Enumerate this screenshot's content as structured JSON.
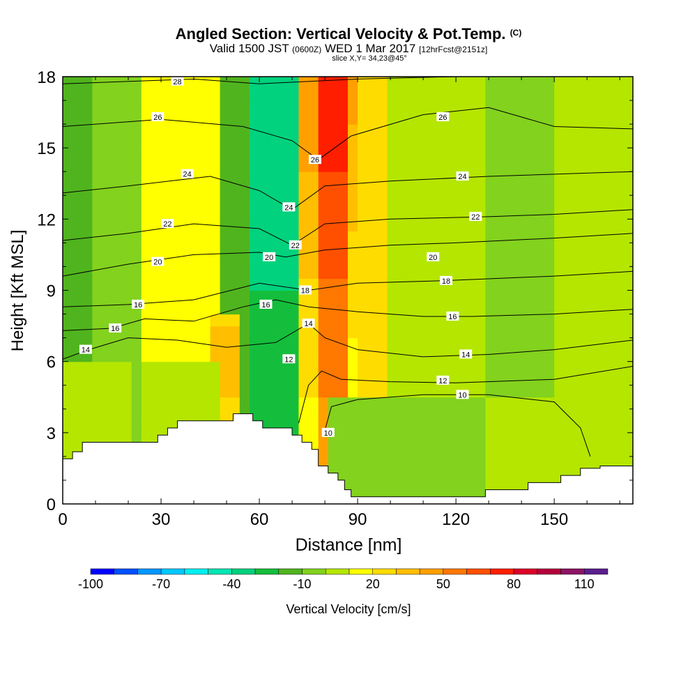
{
  "title": {
    "main": "Angled Section: Vertical Velocity & Pot.Temp.",
    "main_suffix": "(C)",
    "valid_prefix": "Valid 1500 JST",
    "valid_zulu": "(0600Z)",
    "valid_date": "WED 1 Mar 2017",
    "forecast": "[12hrFcst@2151z]",
    "slice": "slice X,Y= 34,23@45°"
  },
  "chart_data": {
    "type": "heatmap",
    "xlabel": "Distance [nm]",
    "ylabel": "Height [Kft MSL]",
    "xlim": [
      0,
      174
    ],
    "ylim": [
      0,
      18
    ],
    "x_ticks": [
      0,
      30,
      60,
      90,
      120,
      150
    ],
    "y_ticks": [
      0,
      3,
      6,
      9,
      12,
      15,
      18
    ],
    "colorbar": {
      "label": "Vertical Velocity [cm/s]",
      "tick_labels": [
        "-100",
        "-70",
        "-40",
        "-10",
        "20",
        "50",
        "80",
        "110"
      ],
      "tick_values": [
        -100,
        -70,
        -40,
        -10,
        20,
        50,
        80,
        110
      ],
      "range": [
        -100,
        120
      ],
      "step": 10,
      "colors": [
        "#0000ff",
        "#0050ff",
        "#0096ff",
        "#00c8ff",
        "#00f0f0",
        "#00e6b4",
        "#00d27d",
        "#14be3c",
        "#50b41e",
        "#82d21e",
        "#b4e600",
        "#ffff00",
        "#ffdc00",
        "#ffbe00",
        "#ffa000",
        "#ff7800",
        "#ff5000",
        "#ff1e00",
        "#dc0028",
        "#b4003c",
        "#8c1464",
        "#5a1e8c"
      ]
    },
    "contour_labels": [
      "10",
      "12",
      "14",
      "16",
      "18",
      "20",
      "22",
      "24",
      "26",
      "28"
    ],
    "theta_contours": [
      {
        "label": "10",
        "pts": [
          [
            80,
            3.1
          ],
          [
            82,
            4.1
          ],
          [
            90,
            4.4
          ],
          [
            110,
            4.6
          ],
          [
            130,
            4.6
          ],
          [
            150,
            4.3
          ],
          [
            158,
            3.2
          ],
          [
            161,
            2.0
          ]
        ]
      },
      {
        "label": "12",
        "pts": [
          [
            72,
            3.4
          ],
          [
            75,
            5.0
          ],
          [
            79,
            5.6
          ],
          [
            85,
            5.25
          ],
          [
            100,
            5.15
          ],
          [
            120,
            5.1
          ],
          [
            150,
            5.25
          ],
          [
            174,
            5.8
          ]
        ]
      },
      {
        "label": "14",
        "pts": [
          [
            0,
            6.1
          ],
          [
            8,
            6.5
          ],
          [
            20,
            7.0
          ],
          [
            35,
            6.9
          ],
          [
            50,
            6.6
          ],
          [
            65,
            6.8
          ],
          [
            75,
            7.6
          ],
          [
            80,
            7.0
          ],
          [
            90,
            6.5
          ],
          [
            110,
            6.2
          ],
          [
            130,
            6.3
          ],
          [
            150,
            6.5
          ],
          [
            174,
            6.9
          ]
        ]
      },
      {
        "label": "16",
        "pts": [
          [
            0,
            7.3
          ],
          [
            15,
            7.4
          ],
          [
            25,
            7.8
          ],
          [
            40,
            7.7
          ],
          [
            55,
            8.3
          ],
          [
            65,
            8.6
          ],
          [
            75,
            8.3
          ],
          [
            90,
            8.1
          ],
          [
            110,
            7.9
          ],
          [
            125,
            7.9
          ],
          [
            150,
            8.0
          ],
          [
            174,
            8.2
          ]
        ]
      },
      {
        "label": "18",
        "pts": [
          [
            0,
            8.3
          ],
          [
            20,
            8.4
          ],
          [
            40,
            8.6
          ],
          [
            60,
            9.3
          ],
          [
            75,
            9.0
          ],
          [
            90,
            9.3
          ],
          [
            115,
            9.4
          ],
          [
            150,
            9.6
          ],
          [
            174,
            9.8
          ]
        ]
      },
      {
        "label": "20",
        "pts": [
          [
            0,
            9.6
          ],
          [
            20,
            10.1
          ],
          [
            40,
            10.5
          ],
          [
            60,
            10.6
          ],
          [
            68,
            10.4
          ],
          [
            80,
            10.7
          ],
          [
            100,
            10.9
          ],
          [
            120,
            11.0
          ],
          [
            150,
            11.2
          ],
          [
            174,
            11.4
          ]
        ]
      },
      {
        "label": "22",
        "pts": [
          [
            0,
            11.1
          ],
          [
            20,
            11.4
          ],
          [
            40,
            11.8
          ],
          [
            60,
            11.6
          ],
          [
            70,
            10.9
          ],
          [
            80,
            11.8
          ],
          [
            100,
            12.0
          ],
          [
            130,
            12.1
          ],
          [
            150,
            12.2
          ],
          [
            174,
            12.4
          ]
        ]
      },
      {
        "label": "24",
        "pts": [
          [
            0,
            13.1
          ],
          [
            20,
            13.4
          ],
          [
            45,
            13.8
          ],
          [
            60,
            13.2
          ],
          [
            70,
            12.4
          ],
          [
            80,
            13.4
          ],
          [
            100,
            13.6
          ],
          [
            130,
            13.8
          ],
          [
            174,
            14.0
          ]
        ]
      },
      {
        "label": "26",
        "pts": [
          [
            0,
            15.9
          ],
          [
            30,
            16.2
          ],
          [
            55,
            15.9
          ],
          [
            70,
            15.3
          ],
          [
            78,
            14.5
          ],
          [
            88,
            15.5
          ],
          [
            110,
            16.4
          ],
          [
            130,
            16.7
          ],
          [
            150,
            15.9
          ],
          [
            174,
            15.8
          ]
        ]
      },
      {
        "label": "28",
        "pts": [
          [
            0,
            17.7
          ],
          [
            40,
            17.9
          ],
          [
            60,
            17.7
          ],
          [
            90,
            17.9
          ],
          [
            120,
            18.0
          ]
        ]
      }
    ],
    "contour_label_positions": [
      {
        "t": "28",
        "x": 35,
        "y": 17.8
      },
      {
        "t": "26",
        "x": 29,
        "y": 16.3
      },
      {
        "t": "26",
        "x": 77,
        "y": 14.5
      },
      {
        "t": "26",
        "x": 116,
        "y": 16.3
      },
      {
        "t": "24",
        "x": 38,
        "y": 13.9
      },
      {
        "t": "24",
        "x": 69,
        "y": 12.5
      },
      {
        "t": "24",
        "x": 122,
        "y": 13.8
      },
      {
        "t": "22",
        "x": 32,
        "y": 11.8
      },
      {
        "t": "22",
        "x": 71,
        "y": 10.9
      },
      {
        "t": "22",
        "x": 126,
        "y": 12.1
      },
      {
        "t": "20",
        "x": 29,
        "y": 10.2
      },
      {
        "t": "20",
        "x": 63,
        "y": 10.4
      },
      {
        "t": "20",
        "x": 113,
        "y": 10.4
      },
      {
        "t": "18",
        "x": 74,
        "y": 9.0
      },
      {
        "t": "18",
        "x": 117,
        "y": 9.4
      },
      {
        "t": "16",
        "x": 23,
        "y": 8.4
      },
      {
        "t": "16",
        "x": 62,
        "y": 8.4
      },
      {
        "t": "16",
        "x": 119,
        "y": 7.9
      },
      {
        "t": "16",
        "x": 16,
        "y": 7.4
      },
      {
        "t": "14",
        "x": 7,
        "y": 6.5
      },
      {
        "t": "14",
        "x": 75,
        "y": 7.6
      },
      {
        "t": "14",
        "x": 123,
        "y": 6.3
      },
      {
        "t": "12",
        "x": 69,
        "y": 6.1
      },
      {
        "t": "12",
        "x": 116,
        "y": 5.2
      },
      {
        "t": "10",
        "x": 122,
        "y": 4.6
      },
      {
        "t": "10",
        "x": 81,
        "y": 3.0
      }
    ],
    "terrain": [
      [
        0,
        1.9
      ],
      [
        3,
        1.9
      ],
      [
        3,
        2.2
      ],
      [
        6,
        2.2
      ],
      [
        6,
        2.6
      ],
      [
        29,
        2.6
      ],
      [
        29,
        2.9
      ],
      [
        32,
        2.9
      ],
      [
        32,
        3.2
      ],
      [
        35,
        3.2
      ],
      [
        35,
        3.5
      ],
      [
        52,
        3.5
      ],
      [
        52,
        3.8
      ],
      [
        58,
        3.8
      ],
      [
        58,
        3.5
      ],
      [
        61,
        3.5
      ],
      [
        61,
        3.2
      ],
      [
        70,
        3.2
      ],
      [
        70,
        2.9
      ],
      [
        73,
        2.9
      ],
      [
        73,
        2.6
      ],
      [
        76,
        2.6
      ],
      [
        76,
        2.3
      ],
      [
        78,
        2.3
      ],
      [
        78,
        1.6
      ],
      [
        81,
        1.6
      ],
      [
        81,
        1.3
      ],
      [
        84,
        1.3
      ],
      [
        84,
        1.0
      ],
      [
        86,
        1.0
      ],
      [
        86,
        0.6
      ],
      [
        88,
        0.6
      ],
      [
        88,
        0.3
      ],
      [
        129,
        0.3
      ],
      [
        129,
        0.6
      ],
      [
        142,
        0.6
      ],
      [
        142,
        0.9
      ],
      [
        152,
        0.9
      ],
      [
        152,
        1.2
      ],
      [
        158,
        1.2
      ],
      [
        158,
        1.5
      ],
      [
        164,
        1.5
      ],
      [
        164,
        1.6
      ],
      [
        174,
        1.6
      ]
    ],
    "velocity_field_description_cells": [
      {
        "x": [
          0,
          8
        ],
        "w": -15
      },
      {
        "x": [
          8,
          25
        ],
        "w": -5
      },
      {
        "x": [
          25,
          48
        ],
        "w": 15
      },
      {
        "x": [
          48,
          58
        ],
        "w": -20
      },
      {
        "x": [
          58,
          72
        ],
        "w": -30
      },
      {
        "x": [
          72,
          78
        ],
        "w": 25
      },
      {
        "x": [
          78,
          86
        ],
        "w": 55
      },
      {
        "x": [
          86,
          100
        ],
        "w": 20
      },
      {
        "x": [
          100,
          130
        ],
        "w": 0
      },
      {
        "x": [
          130,
          150
        ],
        "w": -5
      },
      {
        "x": [
          150,
          162
        ],
        "w": 5
      },
      {
        "x": [
          162,
          174
        ],
        "w": 0
      }
    ]
  }
}
